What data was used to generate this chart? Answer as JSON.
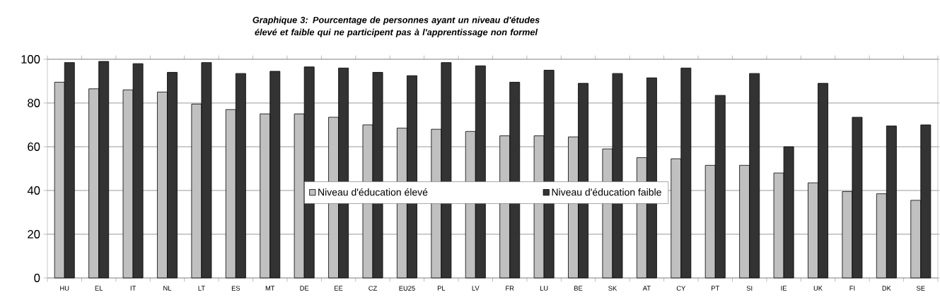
{
  "chart_data": {
    "type": "bar",
    "title": "Graphique 3: Pourcentage de personnes ayant un niveau d'études élevé et faible qui ne participent pas à l'apprentissage non formel",
    "categories": [
      "HU",
      "EL",
      "IT",
      "NL",
      "LT",
      "ES",
      "MT",
      "DE",
      "EE",
      "CZ",
      "EU25",
      "PL",
      "LV",
      "FR",
      "LU",
      "BE",
      "SK",
      "AT",
      "CY",
      "PT",
      "SI",
      "IE",
      "UK",
      "FI",
      "DK",
      "SE"
    ],
    "series": [
      {
        "name": "Niveau d'éducation élevé",
        "color": "#c0c0c0",
        "values": [
          89.5,
          86.5,
          86,
          85,
          79.5,
          77,
          75,
          75,
          73.5,
          70,
          68.5,
          68,
          67,
          65,
          65,
          64.5,
          59,
          55,
          54.5,
          51.5,
          51.5,
          48,
          43.5,
          39.5,
          38.5,
          35.5
        ]
      },
      {
        "name": "Niveau d'éducation faible",
        "color": "#333333",
        "values": [
          98.5,
          99,
          98,
          94,
          98.5,
          93.5,
          94.5,
          96.5,
          96,
          94,
          92.5,
          98.5,
          97,
          89.5,
          95,
          89,
          93.5,
          91.5,
          96,
          83.5,
          93.5,
          60,
          89,
          73.5,
          69.5,
          70
        ]
      }
    ],
    "ylim": [
      0,
      100
    ],
    "yticks": [
      0,
      20,
      40,
      60,
      80,
      100
    ],
    "grid": "y",
    "legend": "center"
  }
}
